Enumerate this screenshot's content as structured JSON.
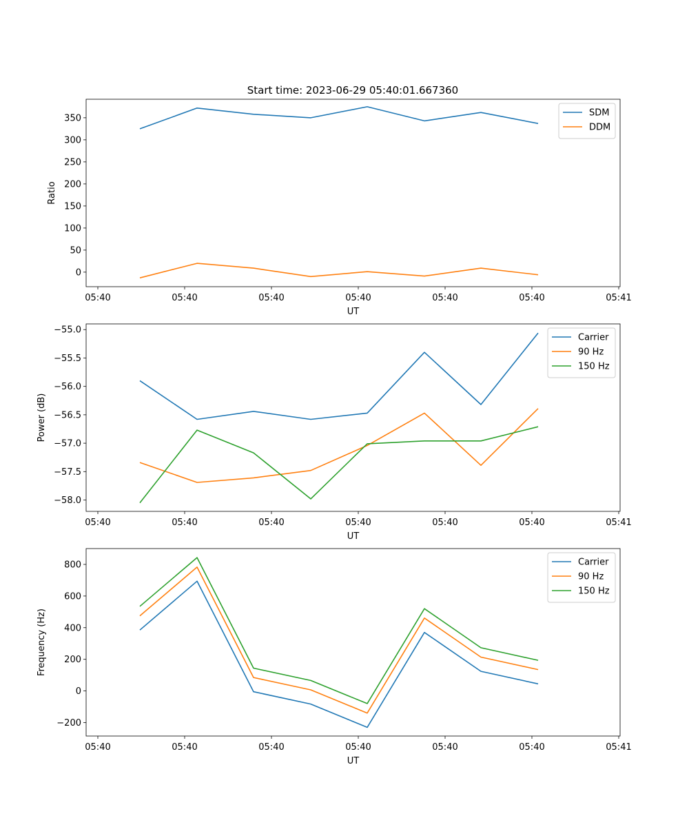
{
  "figure_title": "Start time: 2023-06-29 05:40:01.667360",
  "colors": {
    "blue": "#1f77b4",
    "orange": "#ff7f0e",
    "green": "#2ca02c"
  },
  "chart_data": [
    {
      "type": "line",
      "title": "Start time: 2023-06-29 05:40:01.667360",
      "xlabel": "UT",
      "ylabel": "Ratio",
      "x_tick_labels": [
        "05:40",
        "05:40",
        "05:40",
        "05:40",
        "05:40",
        "05:40",
        "05:40",
        "05:41"
      ],
      "ylim": [
        -33,
        392
      ],
      "yticks": [
        0,
        50,
        100,
        150,
        200,
        250,
        300,
        350
      ],
      "legend_position": "top-right",
      "grid": false,
      "series": [
        {
          "name": "SDM",
          "color": "#1f77b4",
          "values": [
            325,
            372,
            358,
            350,
            375,
            343,
            362,
            337
          ]
        },
        {
          "name": "DDM",
          "color": "#ff7f0e",
          "values": [
            -13,
            20,
            9,
            -10,
            1,
            -9,
            9,
            -6
          ]
        }
      ]
    },
    {
      "type": "line",
      "title": "",
      "xlabel": "UT",
      "ylabel": "Power (dB)",
      "x_tick_labels": [
        "05:40",
        "05:40",
        "05:40",
        "05:40",
        "05:40",
        "05:40",
        "05:40",
        "05:41"
      ],
      "ylim": [
        -58.2,
        -54.9
      ],
      "yticks": [
        -58.0,
        -57.5,
        -57.0,
        -56.5,
        -56.0,
        -55.5,
        -55.0
      ],
      "legend_position": "top-right",
      "grid": false,
      "series": [
        {
          "name": "Carrier",
          "color": "#1f77b4",
          "values": [
            -55.9,
            -56.58,
            -56.44,
            -56.58,
            -56.47,
            -55.4,
            -56.32,
            -55.06
          ]
        },
        {
          "name": "90 Hz",
          "color": "#ff7f0e",
          "values": [
            -57.34,
            -57.69,
            -57.61,
            -57.48,
            -57.04,
            -56.47,
            -57.39,
            -56.39
          ]
        },
        {
          "name": "150 Hz",
          "color": "#2ca02c",
          "values": [
            -58.05,
            -56.77,
            -57.17,
            -57.98,
            -57.01,
            -56.96,
            -56.96,
            -56.71
          ]
        }
      ]
    },
    {
      "type": "line",
      "title": "",
      "xlabel": "UT",
      "ylabel": "Frequency (Hz)",
      "x_tick_labels": [
        "05:40",
        "05:40",
        "05:40",
        "05:40",
        "05:40",
        "05:40",
        "05:40",
        "05:41"
      ],
      "ylim": [
        -285,
        900
      ],
      "yticks": [
        -200,
        0,
        200,
        400,
        600,
        800
      ],
      "legend_position": "top-right",
      "grid": false,
      "series": [
        {
          "name": "Carrier",
          "color": "#1f77b4",
          "values": [
            385,
            694,
            -5,
            -83,
            -230,
            370,
            124,
            45
          ]
        },
        {
          "name": "90 Hz",
          "color": "#ff7f0e",
          "values": [
            475,
            783,
            85,
            7,
            -140,
            461,
            214,
            135
          ]
        },
        {
          "name": "150 Hz",
          "color": "#2ca02c",
          "values": [
            535,
            843,
            144,
            66,
            -80,
            520,
            273,
            194
          ]
        }
      ]
    }
  ]
}
